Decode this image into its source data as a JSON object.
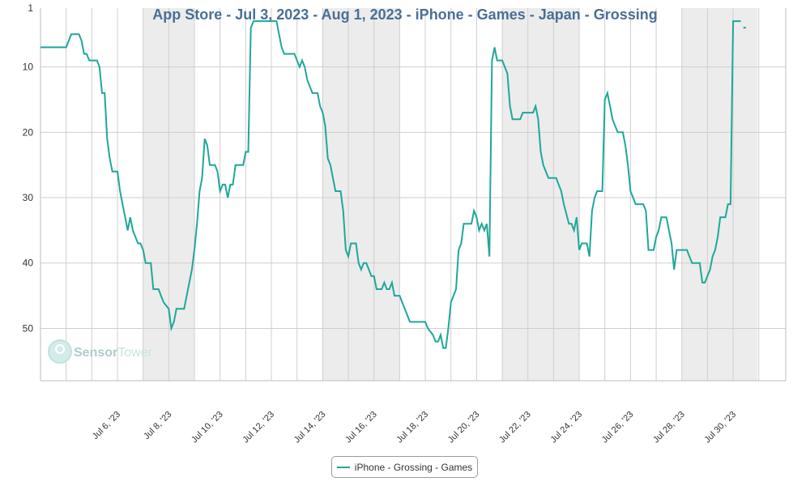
{
  "colors": {
    "series": "#1fa79a",
    "title": "#4a6f96",
    "weekend_band": "#ececec",
    "grid": "#cfcfcf",
    "watermark": "#bfe3df"
  },
  "watermark": {
    "part1": "Sensor",
    "part2": "Tower",
    "icon": "sensor-tower-logo-icon"
  },
  "legend": {
    "label": "iPhone - Grossing - Games"
  },
  "chart_data": {
    "type": "line",
    "title": "App Store - Jul 3, 2023 - Aug 1, 2023 - iPhone - Games - Japan - Grossing",
    "xlabel": "",
    "ylabel": "",
    "xlim": [
      3.0,
      32.05
    ],
    "ylim": [
      1,
      58
    ],
    "y_reversed": true,
    "grid": true,
    "legend_position": "bottom-center",
    "y_ticks": [
      "1",
      "10",
      "20",
      "30",
      "40",
      "50"
    ],
    "y_tick_values": [
      1,
      10,
      20,
      30,
      40,
      50
    ],
    "x_ticks": [
      "Jul 6, '23",
      "Jul 8, '23",
      "Jul 10, '23",
      "Jul 12, '23",
      "Jul 14, '23",
      "Jul 16, '23",
      "Jul 18, '23",
      "Jul 20, '23",
      "Jul 22, '23",
      "Jul 24, '23",
      "Jul 26, '23",
      "Jul 28, '23",
      "Jul 30, '23"
    ],
    "x_tick_values": [
      6,
      8,
      10,
      12,
      14,
      16,
      18,
      20,
      22,
      24,
      26,
      28,
      30
    ],
    "weekend_bands": [
      [
        7,
        9
      ],
      [
        14,
        17
      ],
      [
        21,
        24
      ],
      [
        28,
        30.95
      ]
    ],
    "series": [
      {
        "name": "iPhone - Grossing - Games",
        "points": [
          [
            3.0,
            7
          ],
          [
            3.5,
            7
          ],
          [
            4.0,
            7
          ],
          [
            4.1,
            6
          ],
          [
            4.2,
            5
          ],
          [
            4.5,
            5
          ],
          [
            4.6,
            6
          ],
          [
            4.7,
            8
          ],
          [
            4.8,
            8
          ],
          [
            4.9,
            9
          ],
          [
            5.2,
            9
          ],
          [
            5.3,
            10
          ],
          [
            5.4,
            14
          ],
          [
            5.5,
            14
          ],
          [
            5.6,
            21
          ],
          [
            5.7,
            24
          ],
          [
            5.8,
            26
          ],
          [
            6.0,
            26
          ],
          [
            6.1,
            29
          ],
          [
            6.2,
            31
          ],
          [
            6.3,
            33
          ],
          [
            6.4,
            35
          ],
          [
            6.5,
            33
          ],
          [
            6.6,
            35
          ],
          [
            6.8,
            37
          ],
          [
            6.9,
            37
          ],
          [
            7.0,
            38
          ],
          [
            7.1,
            40
          ],
          [
            7.3,
            40
          ],
          [
            7.4,
            44
          ],
          [
            7.6,
            44
          ],
          [
            7.7,
            45
          ],
          [
            7.8,
            46
          ],
          [
            8.0,
            47
          ],
          [
            8.1,
            50
          ],
          [
            8.2,
            49
          ],
          [
            8.3,
            47
          ],
          [
            8.6,
            47
          ],
          [
            8.7,
            45
          ],
          [
            8.8,
            43
          ],
          [
            8.9,
            41
          ],
          [
            9.0,
            38
          ],
          [
            9.1,
            34
          ],
          [
            9.2,
            29
          ],
          [
            9.3,
            27
          ],
          [
            9.4,
            21
          ],
          [
            9.5,
            22
          ],
          [
            9.6,
            25
          ],
          [
            9.8,
            25
          ],
          [
            9.9,
            26
          ],
          [
            10.0,
            29
          ],
          [
            10.1,
            28
          ],
          [
            10.2,
            28
          ],
          [
            10.3,
            30
          ],
          [
            10.4,
            28
          ],
          [
            10.5,
            28
          ],
          [
            10.6,
            25
          ],
          [
            10.9,
            25
          ],
          [
            11.0,
            23
          ],
          [
            11.1,
            23
          ],
          [
            11.2,
            4
          ],
          [
            11.3,
            3
          ],
          [
            11.5,
            3
          ],
          [
            11.6,
            3
          ],
          [
            12.2,
            3
          ],
          [
            12.3,
            5
          ],
          [
            12.4,
            7
          ],
          [
            12.5,
            8
          ],
          [
            12.9,
            8
          ],
          [
            13.0,
            9
          ],
          [
            13.1,
            10
          ],
          [
            13.2,
            9
          ],
          [
            13.3,
            10
          ],
          [
            13.4,
            12
          ],
          [
            13.5,
            13
          ],
          [
            13.6,
            14
          ],
          [
            13.8,
            14
          ],
          [
            13.9,
            16
          ],
          [
            14.0,
            17
          ],
          [
            14.1,
            19
          ],
          [
            14.2,
            24
          ],
          [
            14.3,
            25
          ],
          [
            14.4,
            27
          ],
          [
            14.5,
            29
          ],
          [
            14.7,
            29
          ],
          [
            14.8,
            32
          ],
          [
            14.9,
            38
          ],
          [
            15.0,
            39
          ],
          [
            15.1,
            37
          ],
          [
            15.3,
            37
          ],
          [
            15.4,
            40
          ],
          [
            15.5,
            41
          ],
          [
            15.6,
            40
          ],
          [
            15.7,
            40
          ],
          [
            15.8,
            41
          ],
          [
            15.9,
            42
          ],
          [
            16.0,
            42
          ],
          [
            16.1,
            44
          ],
          [
            16.3,
            44
          ],
          [
            16.4,
            43
          ],
          [
            16.5,
            44
          ],
          [
            16.6,
            44
          ],
          [
            16.7,
            43
          ],
          [
            16.8,
            45
          ],
          [
            17.0,
            45
          ],
          [
            17.1,
            46
          ],
          [
            17.2,
            47
          ],
          [
            17.3,
            48
          ],
          [
            17.4,
            49
          ],
          [
            18.0,
            49
          ],
          [
            18.1,
            50
          ],
          [
            18.3,
            51
          ],
          [
            18.4,
            52
          ],
          [
            18.5,
            52
          ],
          [
            18.6,
            51
          ],
          [
            18.7,
            53
          ],
          [
            18.8,
            53
          ],
          [
            18.9,
            50
          ],
          [
            19.0,
            46
          ],
          [
            19.1,
            45
          ],
          [
            19.2,
            44
          ],
          [
            19.3,
            38
          ],
          [
            19.4,
            37
          ],
          [
            19.5,
            34
          ],
          [
            19.8,
            34
          ],
          [
            19.9,
            32
          ],
          [
            20.0,
            33
          ],
          [
            20.1,
            35
          ],
          [
            20.2,
            34
          ],
          [
            20.3,
            35
          ],
          [
            20.4,
            34
          ],
          [
            20.5,
            39
          ],
          [
            20.6,
            9
          ],
          [
            20.7,
            7
          ],
          [
            20.8,
            9
          ],
          [
            21.0,
            9
          ],
          [
            21.1,
            10
          ],
          [
            21.2,
            11
          ],
          [
            21.3,
            16
          ],
          [
            21.4,
            18
          ],
          [
            21.7,
            18
          ],
          [
            21.8,
            17
          ],
          [
            22.2,
            17
          ],
          [
            22.3,
            16
          ],
          [
            22.4,
            18
          ],
          [
            22.5,
            23
          ],
          [
            22.6,
            25
          ],
          [
            22.7,
            26
          ],
          [
            22.8,
            27
          ],
          [
            23.1,
            27
          ],
          [
            23.2,
            28
          ],
          [
            23.3,
            29
          ],
          [
            23.4,
            31
          ],
          [
            23.6,
            34
          ],
          [
            23.7,
            34
          ],
          [
            23.8,
            35
          ],
          [
            23.9,
            33
          ],
          [
            24.0,
            38
          ],
          [
            24.1,
            37
          ],
          [
            24.3,
            37
          ],
          [
            24.4,
            39
          ],
          [
            24.5,
            32
          ],
          [
            24.6,
            30
          ],
          [
            24.7,
            29
          ],
          [
            24.9,
            29
          ],
          [
            25.0,
            15
          ],
          [
            25.1,
            14
          ],
          [
            25.2,
            16
          ],
          [
            25.3,
            18
          ],
          [
            25.5,
            20
          ],
          [
            25.7,
            20
          ],
          [
            25.8,
            22
          ],
          [
            25.9,
            25
          ],
          [
            26.0,
            29
          ],
          [
            26.1,
            30
          ],
          [
            26.2,
            31
          ],
          [
            26.5,
            31
          ],
          [
            26.6,
            32
          ],
          [
            26.7,
            38
          ],
          [
            26.9,
            38
          ],
          [
            27.0,
            36
          ],
          [
            27.1,
            35
          ],
          [
            27.2,
            33
          ],
          [
            27.4,
            33
          ],
          [
            27.5,
            35
          ],
          [
            27.6,
            37
          ],
          [
            27.7,
            41
          ],
          [
            27.8,
            38
          ],
          [
            28.2,
            38
          ],
          [
            28.3,
            39
          ],
          [
            28.4,
            40
          ],
          [
            28.7,
            40
          ],
          [
            28.8,
            43
          ],
          [
            28.9,
            43
          ],
          [
            29.0,
            42
          ],
          [
            29.1,
            41
          ],
          [
            29.2,
            39
          ],
          [
            29.3,
            38
          ],
          [
            29.4,
            36
          ],
          [
            29.5,
            33
          ],
          [
            29.7,
            33
          ],
          [
            29.8,
            31
          ],
          [
            29.9,
            31
          ],
          [
            30.0,
            3
          ],
          [
            30.3,
            3
          ],
          [
            30.35,
            null
          ],
          [
            30.4,
            4
          ],
          [
            30.5,
            4
          ]
        ]
      }
    ]
  }
}
